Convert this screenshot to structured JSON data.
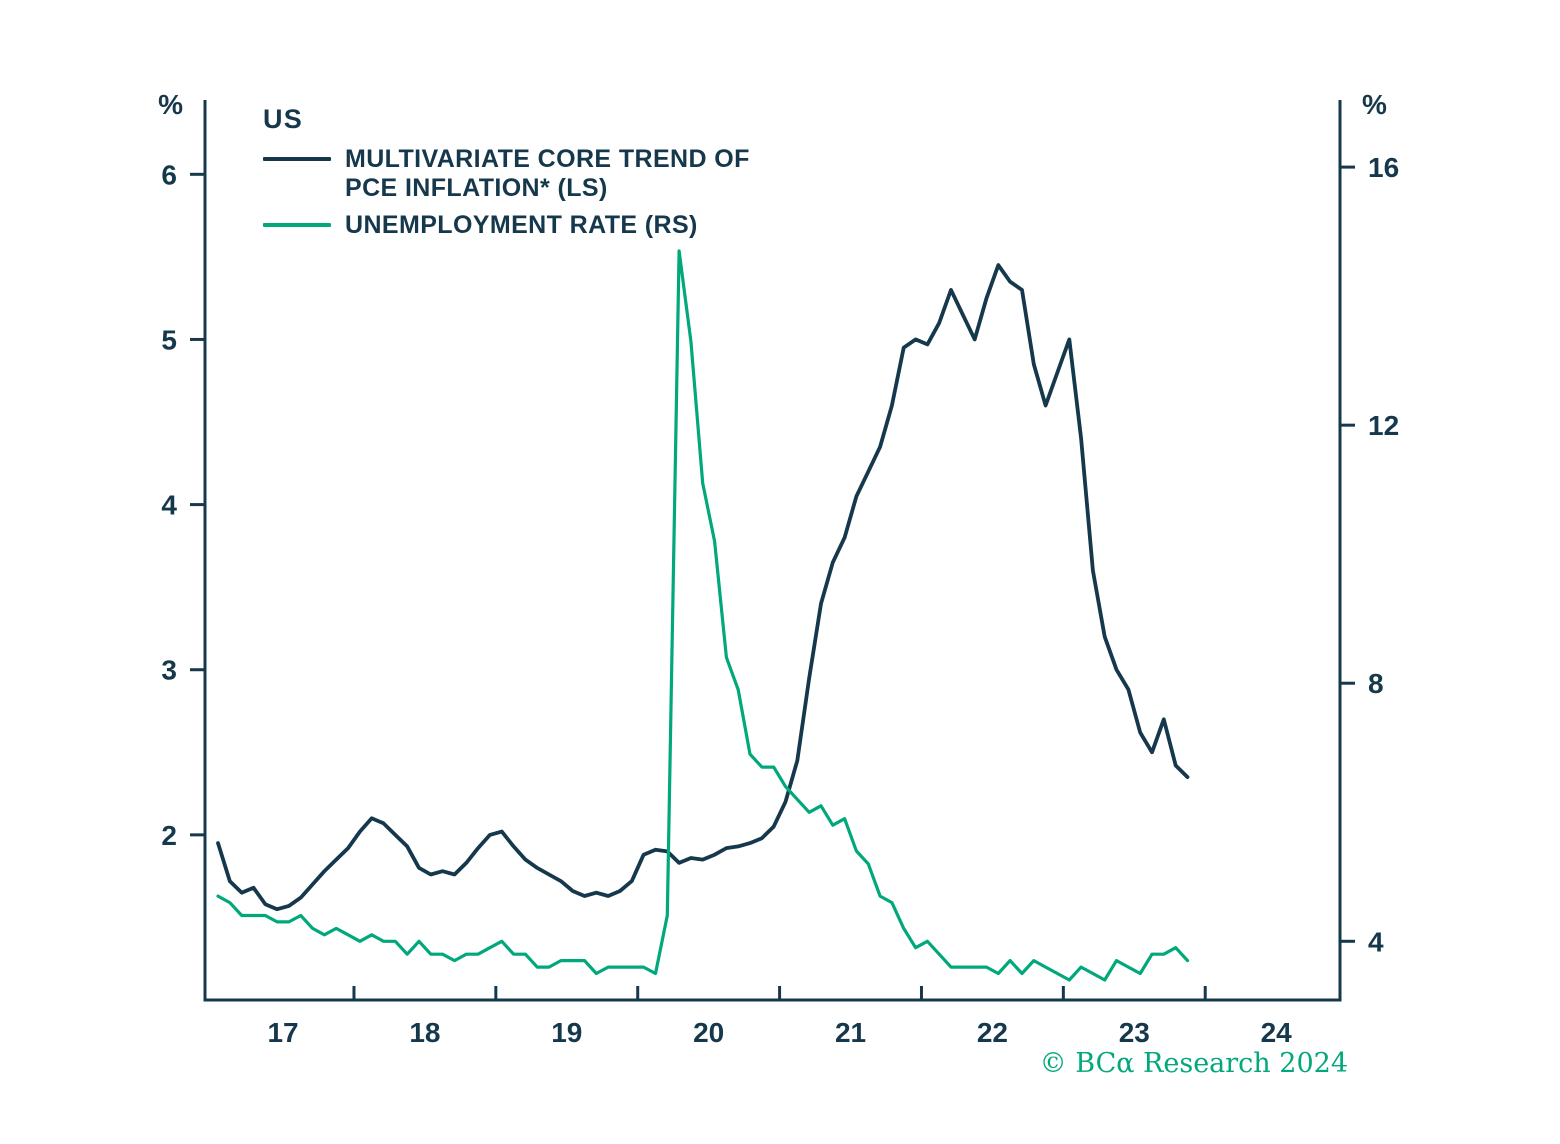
{
  "chart_data": {
    "type": "line",
    "title": "US",
    "axis_color": "#16384c",
    "text_color": "#16384c",
    "footer": "© BCα Research 2024",
    "footer_color": "#00a87b",
    "x_axis": {
      "range": [
        2016.95,
        2024.95
      ],
      "ticks": [
        2018,
        2019,
        2020,
        2021,
        2022,
        2023,
        2024
      ],
      "labels": [
        {
          "text": "17",
          "x": 2017.5
        },
        {
          "text": "18",
          "x": 2018.5
        },
        {
          "text": "19",
          "x": 2019.5
        },
        {
          "text": "20",
          "x": 2020.5
        },
        {
          "text": "21",
          "x": 2021.5
        },
        {
          "text": "22",
          "x": 2022.5
        },
        {
          "text": "23",
          "x": 2023.5
        },
        {
          "text": "24",
          "x": 2024.5
        }
      ]
    },
    "left_axis": {
      "unit": "%",
      "range": [
        1.0,
        6.45
      ],
      "ticks": [
        2,
        3,
        4,
        5,
        6
      ]
    },
    "right_axis": {
      "unit": "%",
      "range": [
        3.09,
        17.04
      ],
      "ticks": [
        4,
        8,
        12,
        16
      ]
    },
    "series": [
      {
        "name": "MULTIVARIATE CORE TREND OF PCE INFLATION* (LS)",
        "axis": "left",
        "color": "#16384c",
        "start_year": 2017,
        "start_month": 1,
        "freq": "monthly",
        "values": [
          1.95,
          1.72,
          1.65,
          1.68,
          1.58,
          1.55,
          1.57,
          1.62,
          1.7,
          1.78,
          1.85,
          1.92,
          2.02,
          2.1,
          2.07,
          2.0,
          1.93,
          1.8,
          1.76,
          1.78,
          1.76,
          1.83,
          1.92,
          2.0,
          2.02,
          1.93,
          1.85,
          1.8,
          1.76,
          1.72,
          1.66,
          1.63,
          1.65,
          1.63,
          1.66,
          1.72,
          1.88,
          1.91,
          1.9,
          1.83,
          1.86,
          1.85,
          1.88,
          1.92,
          1.93,
          1.95,
          1.98,
          2.05,
          2.2,
          2.45,
          2.95,
          3.4,
          3.65,
          3.8,
          4.05,
          4.2,
          4.35,
          4.6,
          4.95,
          5.0,
          4.97,
          5.1,
          5.3,
          5.15,
          5.0,
          5.25,
          5.45,
          5.35,
          5.3,
          4.85,
          4.6,
          4.8,
          5.0,
          4.4,
          3.6,
          3.2,
          3.0,
          2.88,
          2.62,
          2.5,
          2.7,
          2.42,
          2.35
        ]
      },
      {
        "name": "UNEMPLOYMENT RATE (RS)",
        "axis": "right",
        "color": "#00a87b",
        "start_year": 2017,
        "start_month": 1,
        "freq": "monthly",
        "values": [
          4.7,
          4.6,
          4.4,
          4.4,
          4.4,
          4.3,
          4.3,
          4.4,
          4.2,
          4.1,
          4.2,
          4.1,
          4.0,
          4.1,
          4.0,
          4.0,
          3.8,
          4.0,
          3.8,
          3.8,
          3.7,
          3.8,
          3.8,
          3.9,
          4.0,
          3.8,
          3.8,
          3.6,
          3.6,
          3.7,
          3.7,
          3.7,
          3.5,
          3.6,
          3.6,
          3.6,
          3.6,
          3.5,
          4.4,
          14.7,
          13.3,
          11.1,
          10.2,
          8.4,
          7.9,
          6.9,
          6.7,
          6.7,
          6.4,
          6.2,
          6.0,
          6.1,
          5.8,
          5.9,
          5.4,
          5.2,
          4.7,
          4.6,
          4.2,
          3.9,
          4.0,
          3.8,
          3.6,
          3.6,
          3.6,
          3.6,
          3.5,
          3.7,
          3.5,
          3.7,
          3.6,
          3.5,
          3.4,
          3.6,
          3.5,
          3.4,
          3.7,
          3.6,
          3.5,
          3.8,
          3.8,
          3.9,
          3.7
        ]
      }
    ],
    "legend": {
      "title": "US",
      "entries": [
        {
          "lines": [
            "MULTIVARIATE CORE TREND OF",
            "PCE INFLATION* (LS)"
          ],
          "series": 0
        },
        {
          "lines": [
            "UNEMPLOYMENT RATE (RS)"
          ],
          "series": 1
        }
      ]
    }
  }
}
